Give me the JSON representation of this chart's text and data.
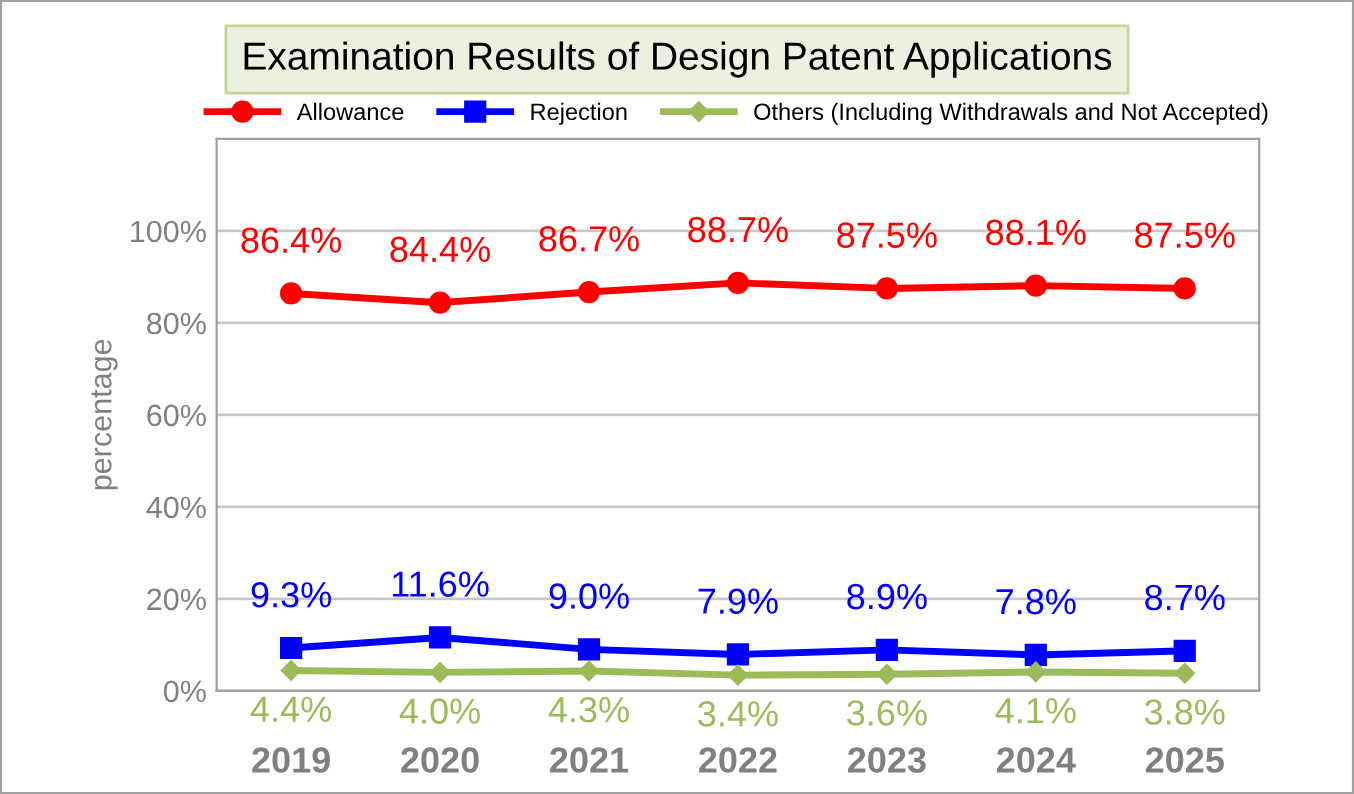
{
  "chart_data": {
    "type": "line",
    "title": "Examination Results of Design Patent Applications",
    "ylabel": "percentage",
    "categories": [
      "2019",
      "2020",
      "2021",
      "2022",
      "2023",
      "2024",
      "2025"
    ],
    "series": [
      {
        "name": "Allowance",
        "color": "#ff0000",
        "marker": "circle",
        "values": [
          86.4,
          84.4,
          86.7,
          88.7,
          87.5,
          88.1,
          87.5
        ],
        "value_labels": [
          "86.4%",
          "84.4%",
          "86.7%",
          "88.7%",
          "87.5%",
          "88.1%",
          "87.5%"
        ]
      },
      {
        "name": "Rejection",
        "color": "#0000ff",
        "marker": "square",
        "values": [
          9.3,
          11.6,
          9.0,
          7.9,
          8.9,
          7.8,
          8.7
        ],
        "value_labels": [
          "9.3%",
          "11.6%",
          "9.0%",
          "7.9%",
          "8.9%",
          "7.8%",
          "8.7%"
        ]
      },
      {
        "name": "Others (Including Withdrawals and Not Accepted)",
        "color": "#9bbb59",
        "marker": "diamond",
        "values": [
          4.4,
          4.0,
          4.3,
          3.4,
          3.6,
          4.1,
          3.8
        ],
        "value_labels": [
          "4.4%",
          "4.0%",
          "4.3%",
          "3.4%",
          "3.6%",
          "4.1%",
          "3.8%"
        ]
      }
    ],
    "ylim": [
      0,
      120
    ],
    "yticks": [
      {
        "value": 0,
        "label": "0%"
      },
      {
        "value": 20,
        "label": "20%"
      },
      {
        "value": 40,
        "label": "40%"
      },
      {
        "value": 60,
        "label": "60%"
      },
      {
        "value": 80,
        "label": "80%"
      },
      {
        "value": 100,
        "label": "100%"
      }
    ],
    "grid": "y",
    "legend": "top",
    "line_style": "solid"
  }
}
